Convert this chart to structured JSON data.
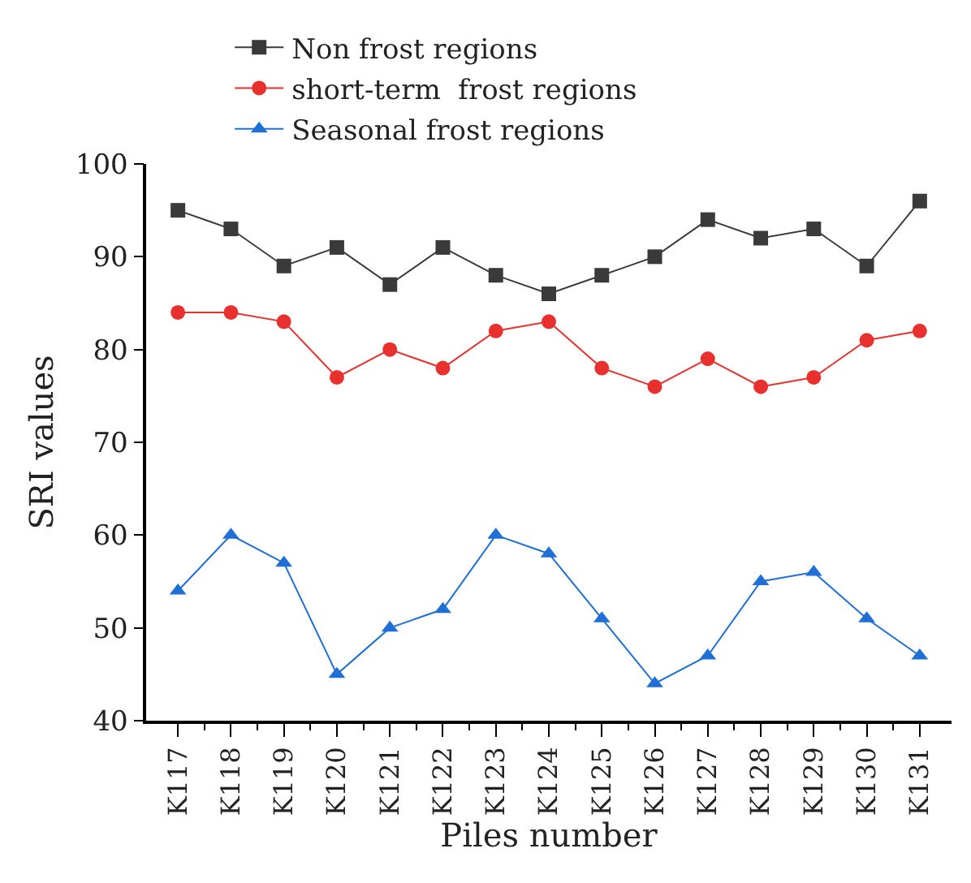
{
  "chart_data": {
    "type": "line",
    "xlabel": "Piles number",
    "ylabel": "SRI values",
    "categories": [
      "K117",
      "K118",
      "K119",
      "K120",
      "K121",
      "K122",
      "K123",
      "K124",
      "K125",
      "K126",
      "K127",
      "K128",
      "K129",
      "K130",
      "K131"
    ],
    "series": [
      {
        "name": "Non frost regions",
        "color": "#3a3a3a",
        "marker": "square",
        "values": [
          95,
          93,
          89,
          91,
          87,
          91,
          88,
          86,
          88,
          90,
          94,
          92,
          93,
          89,
          96
        ]
      },
      {
        "name": "short-term  frost regions",
        "color": "#e8312f",
        "marker": "circle",
        "values": [
          84,
          84,
          83,
          77,
          80,
          78,
          82,
          83,
          78,
          76,
          79,
          76,
          77,
          81,
          82
        ]
      },
      {
        "name": "Seasonal frost regions",
        "color": "#1f6fd6",
        "marker": "triangle",
        "values": [
          54,
          60,
          57,
          45,
          50,
          52,
          60,
          58,
          51,
          44,
          47,
          55,
          56,
          51,
          47
        ]
      }
    ],
    "ylim": [
      40,
      100
    ],
    "yticks": [
      40,
      50,
      60,
      70,
      80,
      90,
      100
    ],
    "grid": false,
    "legend": "top",
    "line_style": "solid"
  }
}
